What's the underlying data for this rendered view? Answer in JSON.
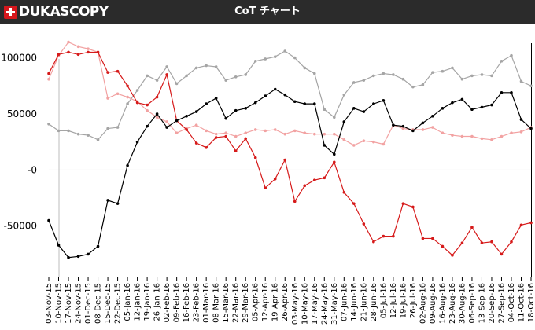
{
  "header": {
    "brand_name": "DUKASCOPY",
    "title": "CoT チャート"
  },
  "colors": {
    "topbar_bg": "#2b2b2b",
    "brand_red": "#d6171c",
    "series_black": "#000000",
    "series_red": "#d61a1a",
    "series_light_red": "#f2a2a2",
    "series_gray": "#a5a5a5"
  },
  "chart_data": {
    "type": "line",
    "title": "",
    "xlabel": "",
    "ylabel": "",
    "ylim": [
      -95000,
      120000
    ],
    "y_ticks": [
      {
        "value": 100000,
        "label": "100000"
      },
      {
        "value": 50000,
        "label": "50000"
      },
      {
        "value": 0,
        "label": "-0"
      },
      {
        "value": -50000,
        "label": "-50000"
      }
    ],
    "grid": false,
    "legend": "none",
    "x": [
      "03-Nov-15",
      "10-Nov-15",
      "17-Nov-15",
      "24-Nov-15",
      "01-Dec-15",
      "08-Dec-15",
      "15-Dec-15",
      "22-Dec-15",
      "05-Jan-16",
      "12-Jan-16",
      "19-Jan-16",
      "26-Jan-16",
      "02-Feb-16",
      "09-Feb-16",
      "16-Feb-16",
      "23-Feb-16",
      "01-Mar-16",
      "08-Mar-16",
      "15-Mar-16",
      "22-Mar-16",
      "29-Mar-16",
      "05-Apr-16",
      "12-Apr-16",
      "19-Apr-16",
      "26-Apr-16",
      "03-May-16",
      "10-May-16",
      "17-May-16",
      "24-May-16",
      "31-May-16",
      "07-Jun-16",
      "14-Jun-16",
      "21-Jun-16",
      "28-Jun-16",
      "05-Jul-16",
      "12-Jul-16",
      "19-Jul-16",
      "26-Jul-16",
      "02-Aug-16",
      "09-Aug-16",
      "16-Aug-16",
      "23-Aug-16",
      "30-Aug-16",
      "06-Sep-16",
      "13-Sep-16",
      "20-Sep-16",
      "27-Sep-16",
      "04-Oct-16",
      "11-Oct-16",
      "18-Oct-16"
    ],
    "series": [
      {
        "color": "#000000",
        "values": [
          -45000,
          -67000,
          -78000,
          -77000,
          -75000,
          -68000,
          -27000,
          -30000,
          4000,
          25000,
          39000,
          50000,
          38000,
          44000,
          48000,
          52000,
          59000,
          64000,
          46000,
          53000,
          55000,
          60000,
          66000,
          72000,
          67000,
          61000,
          59000,
          59000,
          22000,
          14000,
          43000,
          55000,
          52000,
          59000,
          62000,
          40000,
          39000,
          35000,
          42000,
          48000,
          55000,
          60000,
          63000,
          54000,
          56000,
          58000,
          69000,
          69000,
          45000,
          37000
        ]
      },
      {
        "color": "#d61a1a",
        "values": [
          86000,
          103000,
          105000,
          103000,
          105000,
          105000,
          87000,
          88000,
          75000,
          60000,
          58000,
          65000,
          85000,
          44000,
          36000,
          24000,
          20000,
          29000,
          30000,
          17000,
          28000,
          11000,
          -16000,
          -8000,
          9000,
          -28000,
          -14000,
          -9000,
          -7000,
          7000,
          -20000,
          -30000,
          -48000,
          -64000,
          -59000,
          -59000,
          -30000,
          -33000,
          -61000,
          -61000,
          -68000,
          -76000,
          -65000,
          -51000,
          -65000,
          -64000,
          -75000,
          -64000,
          -49000,
          -47000
        ]
      },
      {
        "color": "#f2a2a2",
        "values": [
          81000,
          102000,
          114000,
          110000,
          108000,
          105000,
          64000,
          68000,
          65000,
          61000,
          53000,
          47000,
          43000,
          33000,
          37000,
          40000,
          35000,
          32000,
          33000,
          30000,
          33000,
          36000,
          35000,
          36000,
          32000,
          35000,
          33000,
          32000,
          32000,
          32000,
          27000,
          22000,
          26000,
          25000,
          23000,
          40000,
          37000,
          36000,
          36000,
          38000,
          33000,
          31000,
          30000,
          30000,
          28000,
          27000,
          30000,
          33000,
          34000,
          38000
        ]
      },
      {
        "color": "#a5a5a5",
        "values": [
          41000,
          35000,
          35000,
          32000,
          31000,
          27000,
          37000,
          38000,
          59000,
          71000,
          84000,
          80000,
          92000,
          77000,
          84000,
          91000,
          93000,
          92000,
          80000,
          83000,
          85000,
          97000,
          99000,
          101000,
          106000,
          100000,
          91000,
          86000,
          54000,
          47000,
          67000,
          78000,
          80000,
          84000,
          86000,
          85000,
          81000,
          74000,
          76000,
          87000,
          88000,
          91000,
          81000,
          84000,
          85000,
          84000,
          97000,
          102000,
          79000,
          75000
        ]
      }
    ]
  }
}
